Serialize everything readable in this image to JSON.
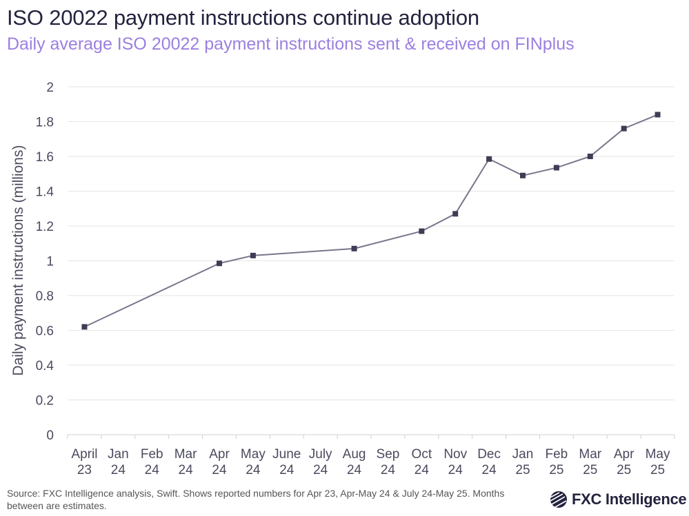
{
  "header": {
    "title": "ISO 20022 payment instructions continue adoption",
    "subtitle": "Daily average ISO 20022 payment instructions sent & received on FINplus"
  },
  "footer": {
    "source": "Source: FXC Intelligence analysis, Swift. Shows reported numbers for Apr 23, Apr-May 24 & July 24-May 25. Months between are estimates.",
    "logo_text": "FXC Intelligence"
  },
  "colors": {
    "line": "#77768a",
    "marker": "#3d3d55",
    "grid": "#e6e6e6",
    "text": "#4a4a5e",
    "subtitle": "#9b7fe0"
  },
  "chart_data": {
    "type": "line",
    "title": "ISO 20022 payment instructions continue adoption",
    "subtitle": "Daily average ISO 20022 payment instructions sent & received on FINplus",
    "xlabel": "",
    "ylabel": "Daily payment instructions (millions)",
    "ylim": [
      0,
      2
    ],
    "yticks": [
      "0",
      "0.2",
      "0.4",
      "0.6",
      "0.8",
      "1",
      "1.2",
      "1.4",
      "1.6",
      "1.8",
      "2"
    ],
    "grid": true,
    "legend": "none",
    "categories": [
      [
        "April",
        "23"
      ],
      [
        "Jan",
        "24"
      ],
      [
        "Feb",
        "24"
      ],
      [
        "Mar",
        "24"
      ],
      [
        "Apr",
        "24"
      ],
      [
        "May",
        "24"
      ],
      [
        "June",
        "24"
      ],
      [
        "July",
        "24"
      ],
      [
        "Aug",
        "24"
      ],
      [
        "Sep",
        "24"
      ],
      [
        "Oct",
        "24"
      ],
      [
        "Nov",
        "24"
      ],
      [
        "Dec",
        "24"
      ],
      [
        "Jan",
        "25"
      ],
      [
        "Feb",
        "25"
      ],
      [
        "Mar",
        "25"
      ],
      [
        "Apr",
        "25"
      ],
      [
        "May",
        "25"
      ]
    ],
    "values": [
      0.62,
      null,
      null,
      null,
      0.985,
      1.03,
      null,
      null,
      1.07,
      null,
      1.17,
      1.27,
      1.585,
      1.49,
      1.535,
      1.6,
      1.76,
      1.84
    ]
  }
}
